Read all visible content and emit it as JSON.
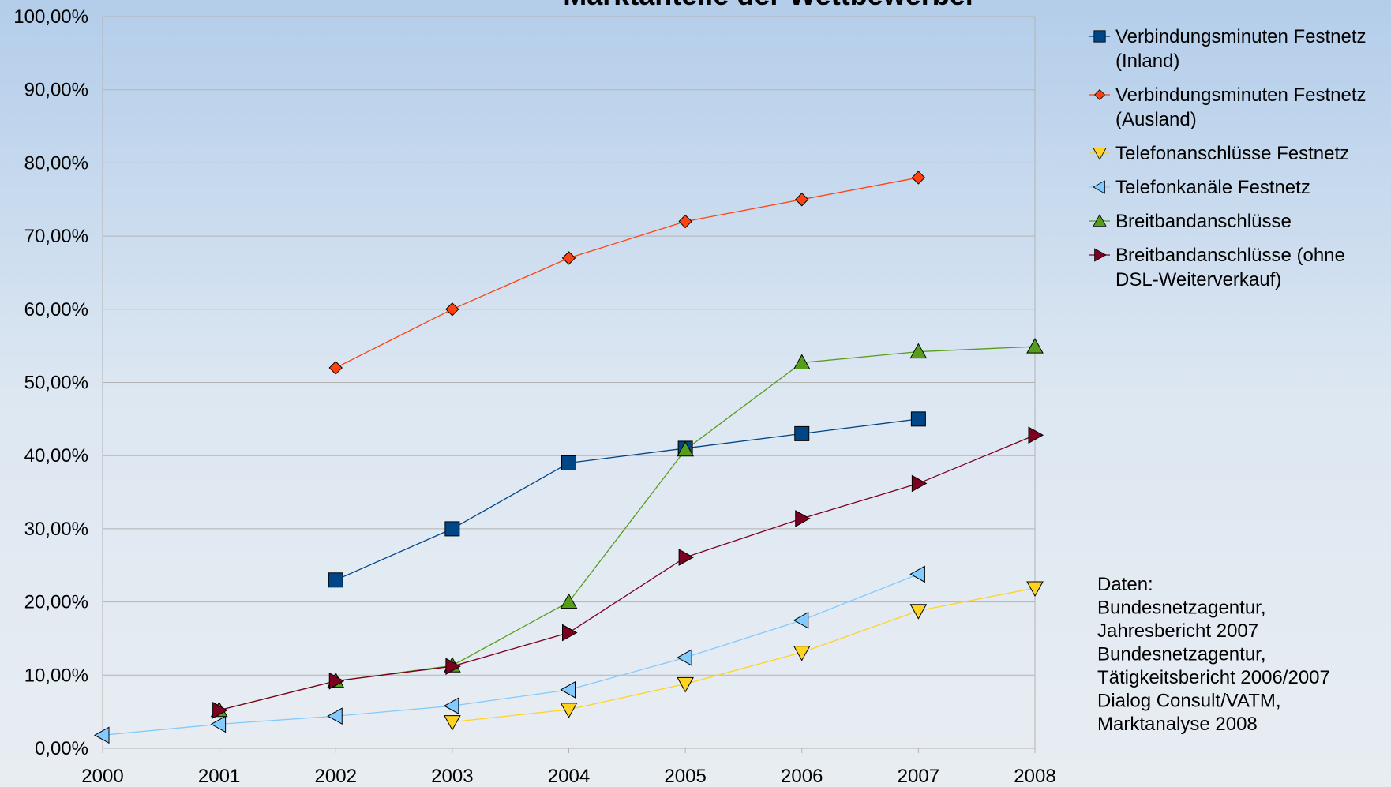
{
  "chart_data": {
    "type": "line",
    "title": "Marktanteile der Wettbewerber",
    "x": [
      2000,
      2001,
      2002,
      2003,
      2004,
      2005,
      2006,
      2007,
      2008
    ],
    "xlim": [
      2000,
      2008
    ],
    "xticks": [
      2000,
      2001,
      2002,
      2003,
      2004,
      2005,
      2006,
      2007,
      2008
    ],
    "ylim": [
      0,
      100
    ],
    "yticks": [
      {
        "value": 0,
        "label": "0,00%"
      },
      {
        "value": 10,
        "label": "10,00%"
      },
      {
        "value": 20,
        "label": "20,00%"
      },
      {
        "value": 30,
        "label": "30,00%"
      },
      {
        "value": 40,
        "label": "40,00%"
      },
      {
        "value": 50,
        "label": "50,00%"
      },
      {
        "value": 60,
        "label": "60,00%"
      },
      {
        "value": 70,
        "label": "70,00%"
      },
      {
        "value": 80,
        "label": "80,00%"
      },
      {
        "value": 90,
        "label": "90,00%"
      },
      {
        "value": 100,
        "label": "100,00%"
      }
    ],
    "grid": true,
    "legend": "right",
    "series": [
      {
        "name": "Verbindungsminuten Festnetz (Inland)",
        "color": "#004586",
        "marker": "square",
        "values": [
          null,
          null,
          23,
          30,
          39,
          41,
          43,
          45,
          null
        ]
      },
      {
        "name": "Verbindungsminuten Festnetz (Ausland)",
        "color": "#ff420e",
        "marker": "diamond",
        "values": [
          null,
          null,
          52,
          60,
          67,
          72,
          75,
          78,
          null
        ]
      },
      {
        "name": "Telefonanschlüsse Festnetz",
        "color": "#ffd320",
        "marker": "triangle-down",
        "values": [
          null,
          null,
          null,
          3.6,
          5.3,
          8.8,
          13.1,
          18.8,
          21.9
        ]
      },
      {
        "name": "Telefonkanäle Festnetz",
        "color": "#83caff",
        "marker": "triangle-left",
        "values": [
          1.8,
          3.3,
          4.4,
          5.8,
          8.0,
          12.4,
          17.5,
          23.8,
          null
        ]
      },
      {
        "name": "Breitbandanschlüsse",
        "color": "#579d1c",
        "marker": "triangle-up",
        "values": [
          null,
          5.2,
          9.2,
          11.3,
          20,
          40.8,
          52.7,
          54.2,
          54.9
        ]
      },
      {
        "name": "Breitbandanschlüsse (ohne DSL-Weiterverkauf)",
        "color": "#7e0021",
        "marker": "triangle-right",
        "values": [
          null,
          5.2,
          9.2,
          11.2,
          15.8,
          26.1,
          31.4,
          36.2,
          42.8
        ]
      }
    ],
    "annotation": [
      "Daten:",
      "Bundesnetzagentur,",
      "Jahresbericht 2007",
      "Bundesnetzagentur,",
      "Tätigkeitsbericht 2006/2007",
      "Dialog Consult/VATM,",
      "Marktanalyse 2008"
    ]
  }
}
